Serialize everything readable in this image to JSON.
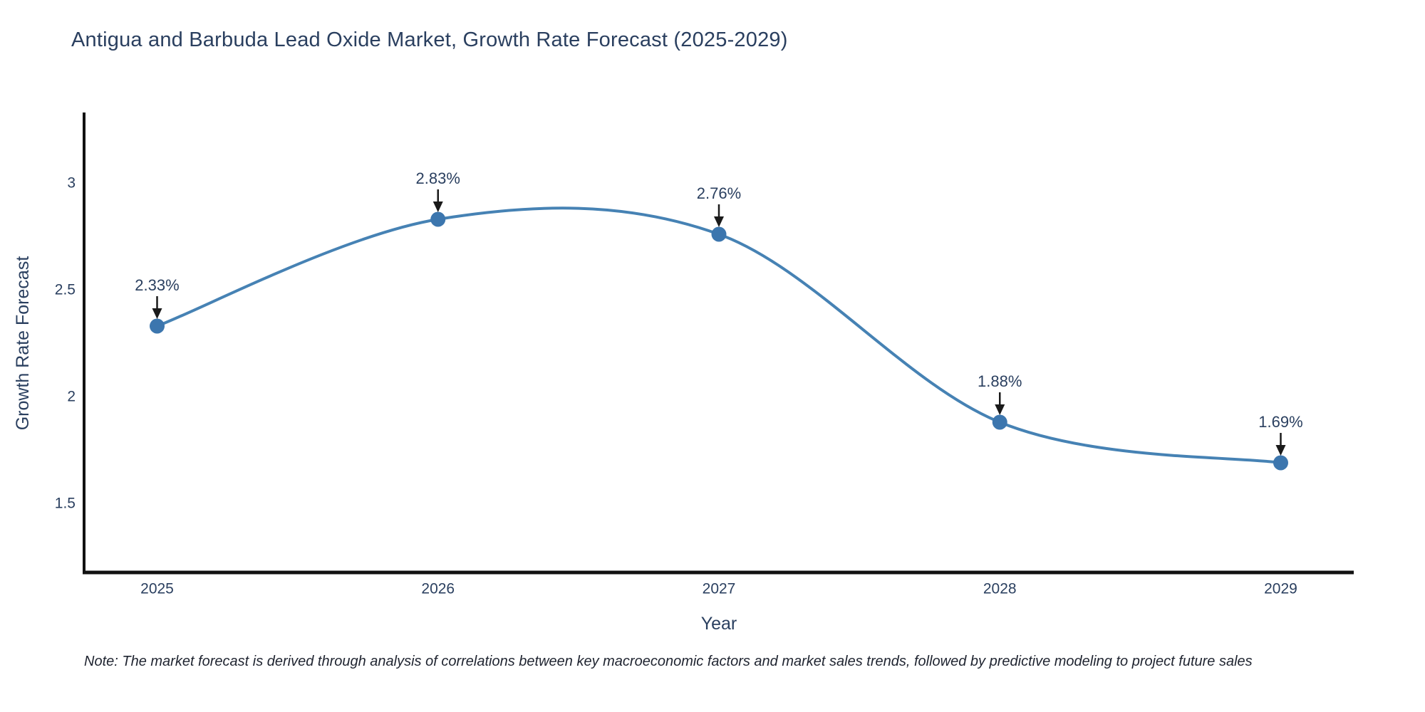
{
  "title": "Antigua and Barbuda Lead Oxide Market, Growth Rate Forecast (2025-2029)",
  "note": "Note: The market forecast is derived through analysis of correlations between key macroeconomic factors and market sales trends, followed by predictive modeling to project future sales",
  "chart_data": {
    "type": "line",
    "line_shape": "spline",
    "title": "Antigua and Barbuda Lead Oxide Market, Growth Rate Forecast (2025-2029)",
    "x": [
      2025,
      2026,
      2027,
      2028,
      2029
    ],
    "values": [
      2.33,
      2.83,
      2.76,
      1.88,
      1.69
    ],
    "point_labels": [
      "2.33%",
      "2.83%",
      "2.76%",
      "1.88%",
      "1.69%"
    ],
    "xlabel": "Year",
    "ylabel": "Growth Rate Forecast",
    "xtick_labels": [
      "2025",
      "2026",
      "2027",
      "2028",
      "2029"
    ],
    "ytick_values": [
      1.5,
      2,
      2.5,
      3
    ],
    "ytick_labels": [
      "1.5",
      "2",
      "2.5",
      "3"
    ],
    "xlim": [
      2024.74,
      2029.26
    ],
    "ylim": [
      1.18,
      3.33
    ],
    "grid": false,
    "legend": "none",
    "colors": {
      "line": "#4682b4",
      "marker": "#3c76ae",
      "axis": "#111111",
      "text": "#2a3f5f",
      "annotation_text": "#2a3f5f",
      "arrow": "#1a1a1a",
      "background": "#ffffff"
    }
  }
}
